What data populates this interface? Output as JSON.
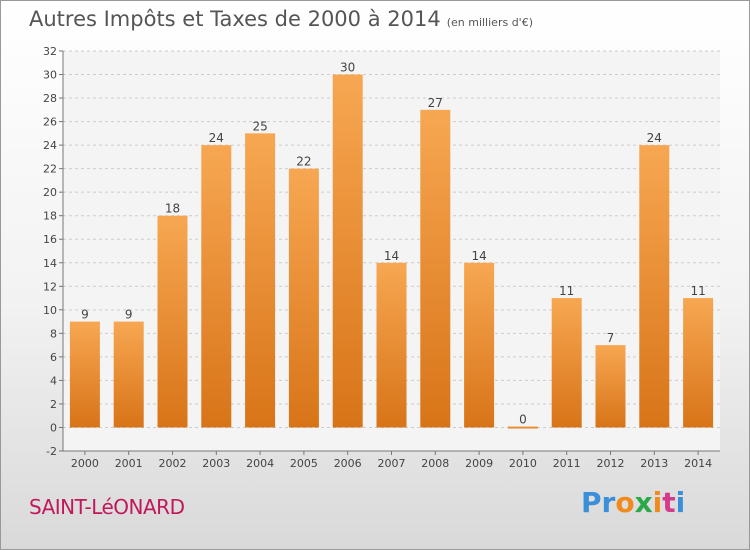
{
  "title": "Autres Impôts et Taxes de 2000 à 2014",
  "title_unit": "(en milliers d'€)",
  "place_name": "SAINT-LéONARD",
  "logo": {
    "text": "Proxiti",
    "colors": [
      "#3a8fd8",
      "#3a8fd8",
      "#f08a1c",
      "#2aa84a",
      "#f08a1c",
      "#d63a8a",
      "#3a8fd8"
    ]
  },
  "colors": {
    "bar_top": "#f7a752",
    "bar_bottom": "#d87418",
    "axis": "#777777",
    "grid": "#cccccc"
  },
  "chart_data": {
    "type": "bar",
    "title": "Autres Impôts et Taxes de 2000 à 2014",
    "ylabel": "",
    "xlabel": "",
    "categories": [
      "2000",
      "2001",
      "2002",
      "2003",
      "2004",
      "2005",
      "2006",
      "2007",
      "2008",
      "2009",
      "2010",
      "2011",
      "2012",
      "2013",
      "2014"
    ],
    "values": [
      9,
      9,
      18,
      24,
      25,
      22,
      30,
      14,
      27,
      14,
      0,
      11,
      7,
      24,
      11
    ],
    "ylim": [
      -2,
      32
    ],
    "yticks": [
      -2,
      0,
      2,
      4,
      6,
      8,
      10,
      12,
      14,
      16,
      18,
      20,
      22,
      24,
      26,
      28,
      30,
      32
    ],
    "grid": true,
    "legend": "none"
  }
}
